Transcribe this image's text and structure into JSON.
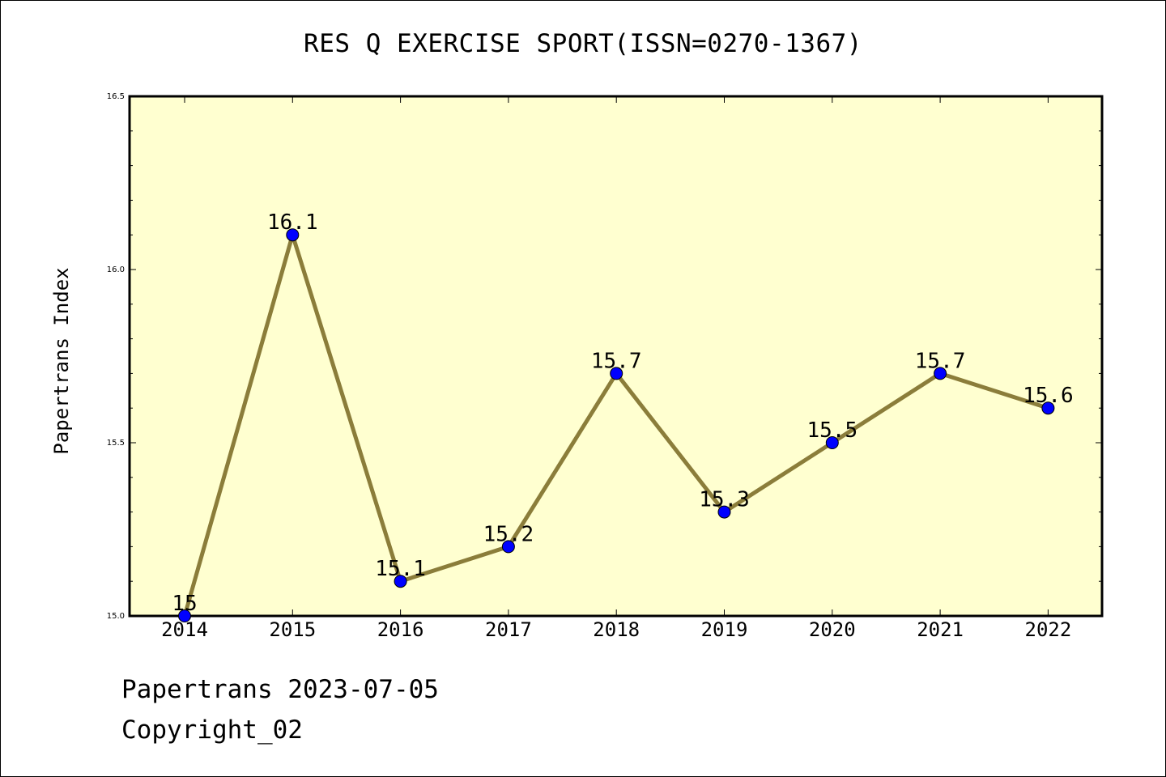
{
  "chart_data": {
    "type": "line",
    "title": "RES Q EXERCISE SPORT(ISSN=0270-1367)",
    "xlabel": "",
    "ylabel": "Papertrans Index",
    "categories": [
      "2014",
      "2015",
      "2016",
      "2017",
      "2018",
      "2019",
      "2020",
      "2021",
      "2022"
    ],
    "values": [
      15.0,
      16.1,
      15.1,
      15.2,
      15.7,
      15.3,
      15.5,
      15.7,
      15.6
    ],
    "data_labels": [
      "15",
      "16.1",
      "15.1",
      "15.2",
      "15.7",
      "15.3",
      "15.5",
      "15.7",
      "15.6"
    ],
    "ylim": [
      15.0,
      16.5
    ],
    "yticks": [
      "15.0",
      "15.5",
      "16.0",
      "16.5"
    ],
    "line_color": "#8b7d3a",
    "marker_color": "#0000ff",
    "background_color": "#ffffd0",
    "grid": false
  },
  "footer": {
    "date_line": "Papertrans 2023-07-05",
    "copyright_line": "Copyright_02"
  }
}
